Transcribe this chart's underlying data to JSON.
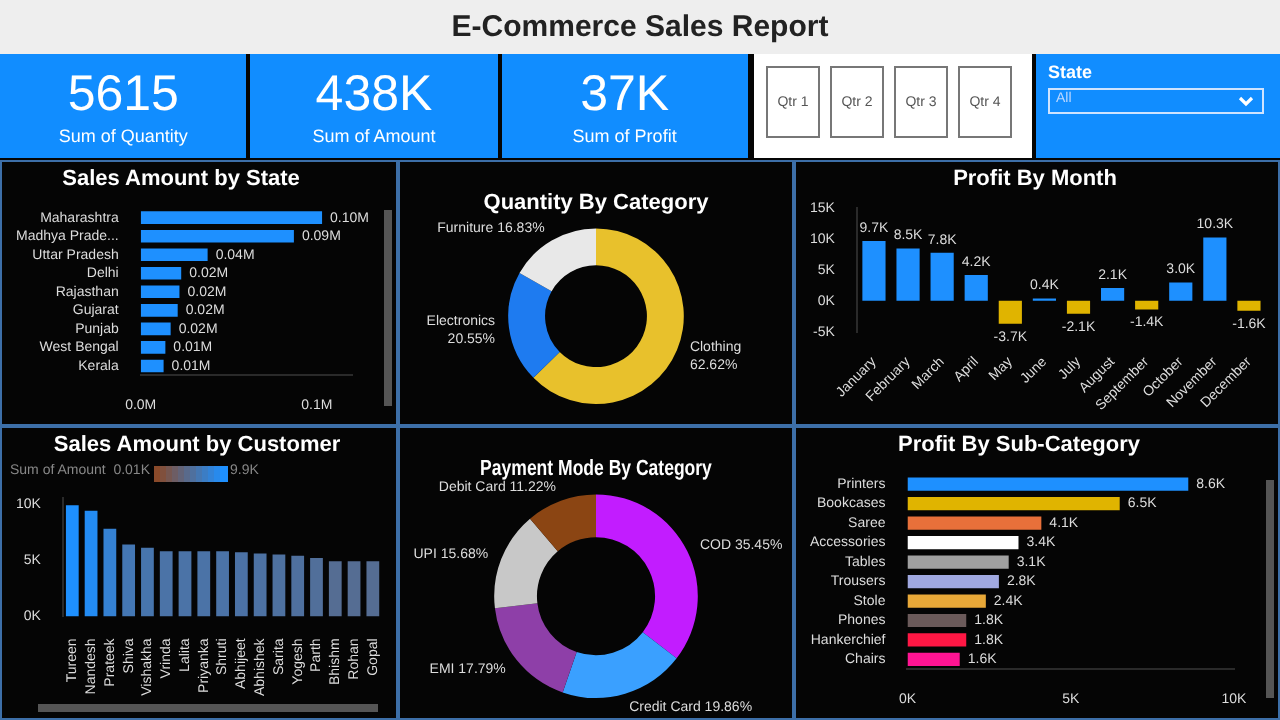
{
  "chart_data": [
    {
      "type": "other",
      "title": "E-Commerce Sales Report"
    },
    {
      "type": "other",
      "annotations": [
        "5615",
        "Sum of Quantity",
        "438K",
        "Sum of Amount",
        "37K",
        "Sum of Profit"
      ]
    },
    {
      "type": "other",
      "title": "State",
      "annotations": [
        "Qtr 1",
        "Qtr 2",
        "Qtr 3",
        "Qtr 4",
        "All"
      ]
    },
    {
      "type": "bar",
      "orientation": "horizontal",
      "title": "Sales Amount by State",
      "categories": [
        "Maharashtra",
        "Madhya Prade...",
        "Uttar Pradesh",
        "Delhi",
        "Rajasthan",
        "Gujarat",
        "Punjab",
        "West Bengal",
        "Kerala"
      ],
      "values": [
        0.103,
        0.087,
        0.038,
        0.023,
        0.022,
        0.021,
        0.017,
        0.014,
        0.013
      ],
      "color": "#1e90ff",
      "value_labels": [
        "0.10M",
        "0.09M",
        "0.04M",
        "0.02M",
        "0.02M",
        "0.02M",
        "0.02M",
        "0.01M",
        "0.01M"
      ],
      "xlim": [
        0,
        0.12
      ],
      "xticks": [
        {
          "value": 0,
          "label": "0.0M"
        },
        {
          "value": 0.1,
          "label": "0.1M"
        }
      ]
    },
    {
      "type": "donut",
      "title": "Quantity By Category",
      "categories": [
        "Clothing",
        "Electronics",
        "Furniture"
      ],
      "values": [
        62.62,
        20.55,
        16.83
      ],
      "colors": [
        "#e8c12c",
        "#1e7bf0",
        "#e8e8e8"
      ],
      "value_labels": [
        "62.62%",
        "20.55%",
        "16.83%"
      ]
    },
    {
      "type": "bar",
      "title": "Profit By Month",
      "categories": [
        "January",
        "February",
        "March",
        "April",
        "May",
        "June",
        "July",
        "August",
        "September",
        "October",
        "November",
        "December"
      ],
      "values": [
        9.7,
        8.5,
        7.8,
        4.2,
        -3.7,
        0.4,
        -2.1,
        2.1,
        -1.4,
        3.0,
        10.3,
        -1.6
      ],
      "colors": [
        "#1e90ff",
        "#1e90ff",
        "#1e90ff",
        "#1e90ff",
        "#e0b400",
        "#1e90ff",
        "#e0b400",
        "#1e90ff",
        "#e0b400",
        "#1e90ff",
        "#1e90ff",
        "#e0b400"
      ],
      "value_labels": [
        "9.7K",
        "8.5K",
        "7.8K",
        "4.2K",
        "-3.7K",
        "0.4K",
        "-2.1K",
        "2.1K",
        "-1.4K",
        "3.0K",
        "10.3K",
        "-1.6K"
      ],
      "ylim": [
        -5,
        15
      ],
      "yticks": [
        {
          "value": -5,
          "label": "-5K"
        },
        {
          "value": 0,
          "label": "0K"
        },
        {
          "value": 5,
          "label": "5K"
        },
        {
          "value": 10,
          "label": "10K"
        },
        {
          "value": 15,
          "label": "15K"
        }
      ]
    },
    {
      "type": "bar",
      "title": "Sales Amount by Customer",
      "categories": [
        "Tureen",
        "Nandesh",
        "Prateek",
        "Shiva",
        "Vishakha",
        "Vrinda",
        "Lalita",
        "Priyanka",
        "Shruti",
        "Abhijeet",
        "Abhishek",
        "Sarita",
        "Yogesh",
        "Parth",
        "Bhishm",
        "Rohan",
        "Gopal"
      ],
      "values": [
        9.9,
        9.4,
        7.8,
        6.4,
        6.1,
        5.8,
        5.8,
        5.8,
        5.8,
        5.7,
        5.6,
        5.5,
        5.4,
        5.2,
        4.9,
        4.9,
        4.9
      ],
      "colors": [
        "#1e90ff",
        "#238cf4",
        "#3581d2",
        "#4477b4",
        "#4775ad",
        "#4b73a7",
        "#4b73a7",
        "#4b73a7",
        "#4b73a7",
        "#4c72a5",
        "#4d72a3",
        "#4e71a0",
        "#4f709e",
        "#516f9a",
        "#556d93",
        "#556d93",
        "#556d93"
      ],
      "clabel": "Sum of Amount",
      "annotations": [
        "0.01K",
        "9.9K"
      ],
      "ylim": [
        0,
        10.5
      ],
      "yticks": [
        {
          "value": 0,
          "label": "0K"
        },
        {
          "value": 5,
          "label": "5K"
        },
        {
          "value": 10,
          "label": "10K"
        }
      ]
    },
    {
      "type": "donut",
      "title": "Payment Mode By Category",
      "categories": [
        "COD",
        "Credit Card",
        "EMI",
        "UPI",
        "Debit Card"
      ],
      "values": [
        35.45,
        19.86,
        17.79,
        15.68,
        11.22
      ],
      "colors": [
        "#c21cff",
        "#3aa0ff",
        "#8e3fa8",
        "#c8c8c8",
        "#8b4513"
      ],
      "value_labels": [
        "35.45%",
        "19.86%",
        "17.79%",
        "15.68%",
        "11.22%"
      ]
    },
    {
      "type": "bar",
      "orientation": "horizontal",
      "title": "Profit By Sub-Category",
      "categories": [
        "Printers",
        "Bookcases",
        "Saree",
        "Accessories",
        "Tables",
        "Trousers",
        "Stole",
        "Phones",
        "Hankerchief",
        "Chairs"
      ],
      "values": [
        8.6,
        6.5,
        4.1,
        3.4,
        3.1,
        2.8,
        2.4,
        1.8,
        1.8,
        1.6
      ],
      "colors": [
        "#1e90ff",
        "#e0b400",
        "#e8703a",
        "#ffffff",
        "#a0a0a0",
        "#a0a8e0",
        "#e8a838",
        "#6b5a5a",
        "#ff1744",
        "#ff1493"
      ],
      "value_labels": [
        "8.6K",
        "6.5K",
        "4.1K",
        "3.4K",
        "3.1K",
        "2.8K",
        "2.4K",
        "1.8K",
        "1.8K",
        "1.6K"
      ],
      "xlim": [
        0,
        10
      ],
      "xticks": [
        {
          "value": 0,
          "label": "0K"
        },
        {
          "value": 5,
          "label": "5K"
        },
        {
          "value": 10,
          "label": "10K"
        }
      ]
    }
  ]
}
